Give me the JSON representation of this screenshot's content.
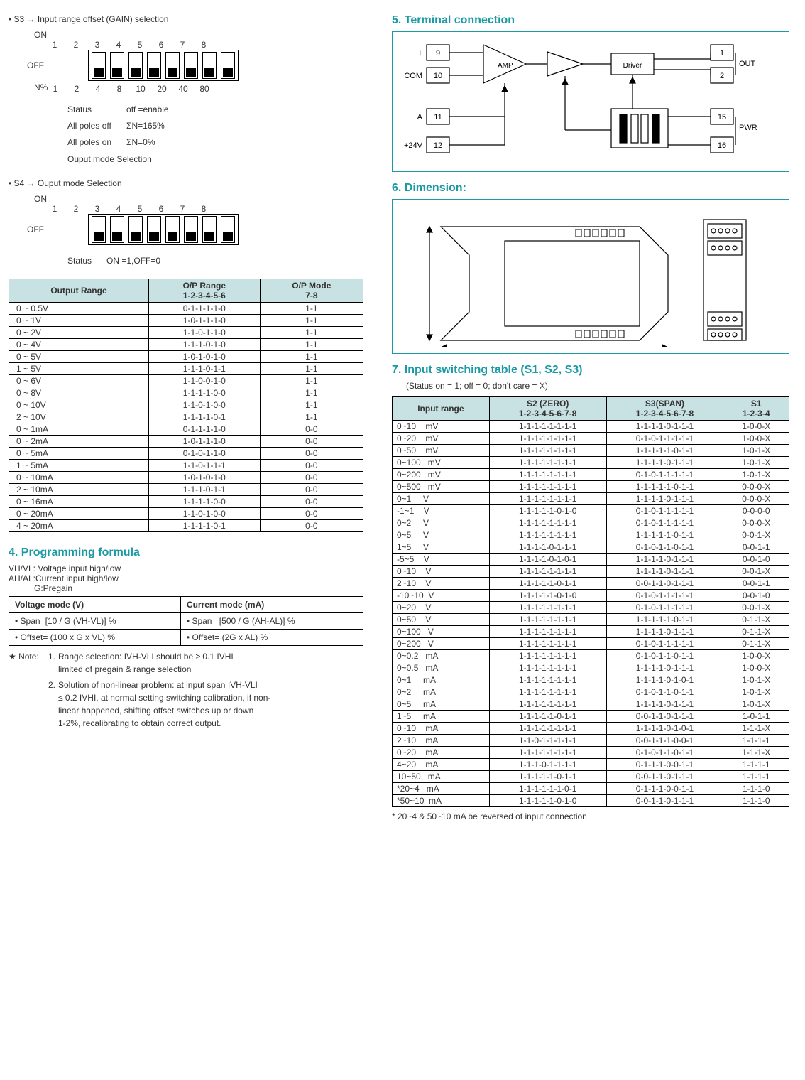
{
  "s3": {
    "title": "• S3 → Input range offset (GAIN) selection",
    "on": "ON",
    "off": "OFF",
    "top_numbers": [
      "1",
      "2",
      "3",
      "4",
      "5",
      "6",
      "7",
      "8"
    ],
    "bottom_label": "N%",
    "bottom_values": [
      "1",
      "2",
      "4",
      "8",
      "10",
      "20",
      "40",
      "80"
    ],
    "status_label": "Status",
    "status_value": "off =enable",
    "poles_off_label": "All poles off",
    "poles_off_value": "ΣN=165%",
    "poles_on_label": "All poles on",
    "poles_on_value": "ΣN=0%",
    "output_mode": "Ouput mode Selection"
  },
  "s4": {
    "title": "• S4 → Ouput mode Selection",
    "on": "ON",
    "off": "OFF",
    "top_numbers": [
      "1",
      "2",
      "3",
      "4",
      "5",
      "6",
      "7",
      "8"
    ],
    "status_label": "Status",
    "status_value": "ON =1,OFF=0"
  },
  "output_table": {
    "headers": [
      "Output Range",
      "O/P Range\n1-2-3-4-5-6",
      "O/P Mode\n7-8"
    ],
    "rows": [
      [
        "0 ~ 0.5V",
        "0-1-1-1-1-0",
        "1-1"
      ],
      [
        "0 ~ 1V",
        "1-0-1-1-1-0",
        "1-1"
      ],
      [
        "0 ~ 2V",
        "1-1-0-1-1-0",
        "1-1"
      ],
      [
        "0 ~ 4V",
        "1-1-1-0-1-0",
        "1-1"
      ],
      [
        "0 ~ 5V",
        "1-0-1-0-1-0",
        "1-1"
      ],
      [
        "1 ~ 5V",
        "1-1-1-0-1-1",
        "1-1"
      ],
      [
        "0 ~ 6V",
        "1-1-0-0-1-0",
        "1-1"
      ],
      [
        "0 ~ 8V",
        "1-1-1-1-0-0",
        "1-1"
      ],
      [
        "0 ~ 10V",
        "1-1-0-1-0-0",
        "1-1"
      ],
      [
        "2 ~ 10V",
        "1-1-1-1-0-1",
        "1-1"
      ],
      [
        "0 ~ 1mA",
        "0-1-1-1-1-0",
        "0-0"
      ],
      [
        "0 ~ 2mA",
        "1-0-1-1-1-0",
        "0-0"
      ],
      [
        "0 ~ 5mA",
        "0-1-0-1-1-0",
        "0-0"
      ],
      [
        "1 ~ 5mA",
        "1-1-0-1-1-1",
        "0-0"
      ],
      [
        "0 ~ 10mA",
        "1-0-1-0-1-0",
        "0-0"
      ],
      [
        "2 ~ 10mA",
        "1-1-1-0-1-1",
        "0-0"
      ],
      [
        "0 ~ 16mA",
        "1-1-1-1-0-0",
        "0-0"
      ],
      [
        "0 ~ 20mA",
        "1-1-0-1-0-0",
        "0-0"
      ],
      [
        "4 ~ 20mA",
        "1-1-1-1-0-1",
        "0-0"
      ]
    ]
  },
  "section4": {
    "title": "4. Programming formula",
    "line1": "VH/VL: Voltage input high/low",
    "line2": "AH/AL:Current input high/low",
    "line3": "G:Pregain",
    "table": {
      "headers": [
        "Voltage mode (V)",
        "Current mode (mA)"
      ],
      "rows": [
        [
          "• Span=[10 / G (VH-VL)] %",
          "• Span= [500 / G (AH-AL)] %"
        ],
        [
          "• Offset= (100 x G x VL) %",
          "• Offset= (2G x AL) %"
        ]
      ]
    },
    "note_star": "★ Note:",
    "note1_label": "1.",
    "note1": "Range selection: IVH-VLI should be ≥ 0.1 IVHI\nlimited of pregain & range selection",
    "note2_label": "2.",
    "note2": "Solution of non-linear problem: at input span IVH-VLI\n≤ 0.2 IVHI, at normal setting switching calibration, if non-\nlinear happened, shifting offset switches up or down\n1-2%, recalibrating to obtain correct output."
  },
  "section5": {
    "title": "5. Terminal connection",
    "labels": {
      "plus": "+",
      "com": "COM",
      "pa": "+A",
      "p24": "+24V",
      "out": "OUT",
      "pwr": "PWR",
      "amp": "AMP",
      "driver": "Driver",
      "t9": "9",
      "t10": "10",
      "t11": "11",
      "t12": "12",
      "t1": "1",
      "t2": "2",
      "t15": "15",
      "t16": "16"
    }
  },
  "section6": {
    "title": "6. Dimension:"
  },
  "section7": {
    "title": "7. Input switching table (S1, S2, S3)",
    "subtitle": "(Status on = 1; off = 0; don't care = X)",
    "headers": [
      "Input range",
      "S2 (ZERO)\n1-2-3-4-5-6-7-8",
      "S3(SPAN)\n1-2-3-4-5-6-7-8",
      "S1\n1-2-3-4"
    ],
    "rows": [
      [
        "0~10    mV",
        "1-1-1-1-1-1-1-1",
        "1-1-1-1-0-1-1-1",
        "1-0-0-X"
      ],
      [
        "0~20    mV",
        "1-1-1-1-1-1-1-1",
        "0-1-0-1-1-1-1-1",
        "1-0-0-X"
      ],
      [
        "0~50    mV",
        "1-1-1-1-1-1-1-1",
        "1-1-1-1-1-0-1-1",
        "1-0-1-X"
      ],
      [
        "0~100   mV",
        "1-1-1-1-1-1-1-1",
        "1-1-1-1-0-1-1-1",
        "1-0-1-X"
      ],
      [
        "0~200   mV",
        "1-1-1-1-1-1-1-1",
        "0-1-0-1-1-1-1-1",
        "1-0-1-X"
      ],
      [
        "0~500   mV",
        "1-1-1-1-1-1-1-1",
        "1-1-1-1-1-0-1-1",
        "0-0-0-X"
      ],
      [
        "0~1     V",
        "1-1-1-1-1-1-1-1",
        "1-1-1-1-0-1-1-1",
        "0-0-0-X"
      ],
      [
        "-1~1    V",
        "1-1-1-1-1-0-1-0",
        "0-1-0-1-1-1-1-1",
        "0-0-0-0"
      ],
      [
        "0~2     V",
        "1-1-1-1-1-1-1-1",
        "0-1-0-1-1-1-1-1",
        "0-0-0-X"
      ],
      [
        "0~5     V",
        "1-1-1-1-1-1-1-1",
        "1-1-1-1-1-0-1-1",
        "0-0-1-X"
      ],
      [
        "1~5     V",
        "1-1-1-1-0-1-1-1",
        "0-1-0-1-1-0-1-1",
        "0-0-1-1"
      ],
      [
        "-5~5    V",
        "1-1-1-1-0-1-0-1",
        "1-1-1-1-0-1-1-1",
        "0-0-1-0"
      ],
      [
        "0~10    V",
        "1-1-1-1-1-1-1-1",
        "1-1-1-1-0-1-1-1",
        "0-0-1-X"
      ],
      [
        "2~10    V",
        "1-1-1-1-1-0-1-1",
        "0-0-1-1-0-1-1-1",
        "0-0-1-1"
      ],
      [
        "-10~10  V",
        "1-1-1-1-1-0-1-0",
        "0-1-0-1-1-1-1-1",
        "0-0-1-0"
      ],
      [
        "0~20    V",
        "1-1-1-1-1-1-1-1",
        "0-1-0-1-1-1-1-1",
        "0-0-1-X"
      ],
      [
        "0~50    V",
        "1-1-1-1-1-1-1-1",
        "1-1-1-1-1-0-1-1",
        "0-1-1-X"
      ],
      [
        "0~100   V",
        "1-1-1-1-1-1-1-1",
        "1-1-1-1-0-1-1-1",
        "0-1-1-X"
      ],
      [
        "0~200   V",
        "1-1-1-1-1-1-1-1",
        "0-1-0-1-1-1-1-1",
        "0-1-1-X"
      ],
      [
        "0~0.2   mA",
        "1-1-1-1-1-1-1-1",
        "0-1-0-1-1-0-1-1",
        "1-0-0-X"
      ],
      [
        "0~0.5   mA",
        "1-1-1-1-1-1-1-1",
        "1-1-1-1-0-1-1-1",
        "1-0-0-X"
      ],
      [
        "0~1     mA",
        "1-1-1-1-1-1-1-1",
        "1-1-1-1-0-1-0-1",
        "1-0-1-X"
      ],
      [
        "0~2     mA",
        "1-1-1-1-1-1-1-1",
        "0-1-0-1-1-0-1-1",
        "1-0-1-X"
      ],
      [
        "0~5     mA",
        "1-1-1-1-1-1-1-1",
        "1-1-1-1-0-1-1-1",
        "1-0-1-X"
      ],
      [
        "1~5     mA",
        "1-1-1-1-1-0-1-1",
        "0-0-1-1-0-1-1-1",
        "1-0-1-1"
      ],
      [
        "0~10    mA",
        "1-1-1-1-1-1-1-1",
        "1-1-1-1-0-1-0-1",
        "1-1-1-X"
      ],
      [
        "2~10    mA",
        "1-1-0-1-1-1-1-1",
        "0-0-1-1-1-0-0-1",
        "1-1-1-1"
      ],
      [
        "0~20    mA",
        "1-1-1-1-1-1-1-1",
        "0-1-0-1-1-0-1-1",
        "1-1-1-X"
      ],
      [
        "4~20    mA",
        "1-1-1-0-1-1-1-1",
        "0-1-1-1-0-0-1-1",
        "1-1-1-1"
      ],
      [
        "10~50   mA",
        "1-1-1-1-1-0-1-1",
        "0-0-1-1-0-1-1-1",
        "1-1-1-1"
      ],
      [
        "*20~4   mA",
        "1-1-1-1-1-1-0-1",
        "0-1-1-1-0-0-1-1",
        "1-1-1-0"
      ],
      [
        "*50~10  mA",
        "1-1-1-1-1-0-1-0",
        "0-0-1-1-0-1-1-1",
        "1-1-1-0"
      ]
    ],
    "footnote": "* 20~4 & 50~10 mA be reversed of input connection"
  },
  "colors": {
    "accent": "#1a9aa3",
    "header_bg": "#c8e2e3"
  }
}
